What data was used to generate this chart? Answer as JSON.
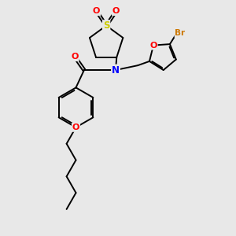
{
  "background_color": "#e8e8e8",
  "bond_color": "#000000",
  "N_color": "#0000ff",
  "O_color": "#ff0000",
  "S_color": "#cccc00",
  "Br_color": "#cc7700",
  "figsize": [
    3.0,
    3.0
  ],
  "dpi": 100,
  "xlim": [
    0,
    10
  ],
  "ylim": [
    0,
    10
  ]
}
